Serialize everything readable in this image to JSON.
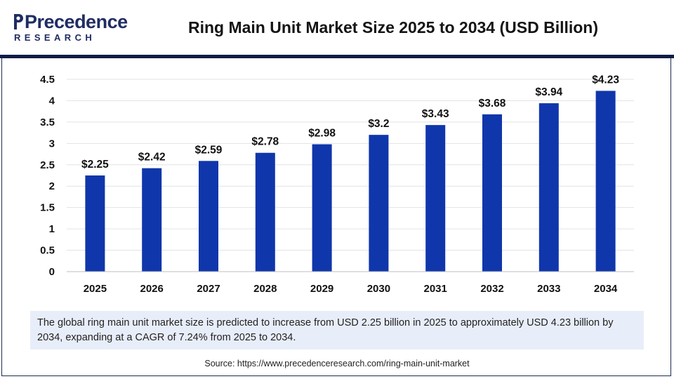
{
  "header": {
    "logo_word": "Precedence",
    "logo_sub": "RESEARCH",
    "title": "Ring Main Unit Market Size 2025 to 2034 (USD Billion)"
  },
  "colors": {
    "bar": "#0f36ab",
    "header_rule": "#0e1d45",
    "brand": "#1f2d63",
    "note_bg": "#e8eef9"
  },
  "chart_data": {
    "type": "bar",
    "title": "Ring Main Unit Market Size 2025 to 2034 (USD Billion)",
    "xlabel": "",
    "ylabel": "",
    "categories": [
      "2025",
      "2026",
      "2027",
      "2028",
      "2029",
      "2030",
      "2031",
      "2032",
      "2033",
      "2034"
    ],
    "values": [
      2.25,
      2.42,
      2.59,
      2.78,
      2.98,
      3.2,
      3.43,
      3.68,
      3.94,
      4.23
    ],
    "data_labels": [
      "$2.25",
      "$2.42",
      "$2.59",
      "$2.78",
      "$2.98",
      "$3.2",
      "$3.43",
      "$3.68",
      "$3.94",
      "$4.23"
    ],
    "ylim": [
      0,
      4.5
    ],
    "yticks": [
      "0",
      "0.5",
      "1",
      "1.5",
      "2",
      "2.5",
      "3",
      "3.5",
      "4",
      "4.5"
    ],
    "grid": true,
    "legend": "none"
  },
  "note": {
    "text": "The global ring main unit market size is predicted to increase from USD 2.25 billion in 2025 to approximately USD 4.23 billion by 2034, expanding at a CAGR of 7.24% from 2025 to 2034."
  },
  "source": {
    "text": "Source: https://www.precedenceresearch.com/ring-main-unit-market"
  }
}
